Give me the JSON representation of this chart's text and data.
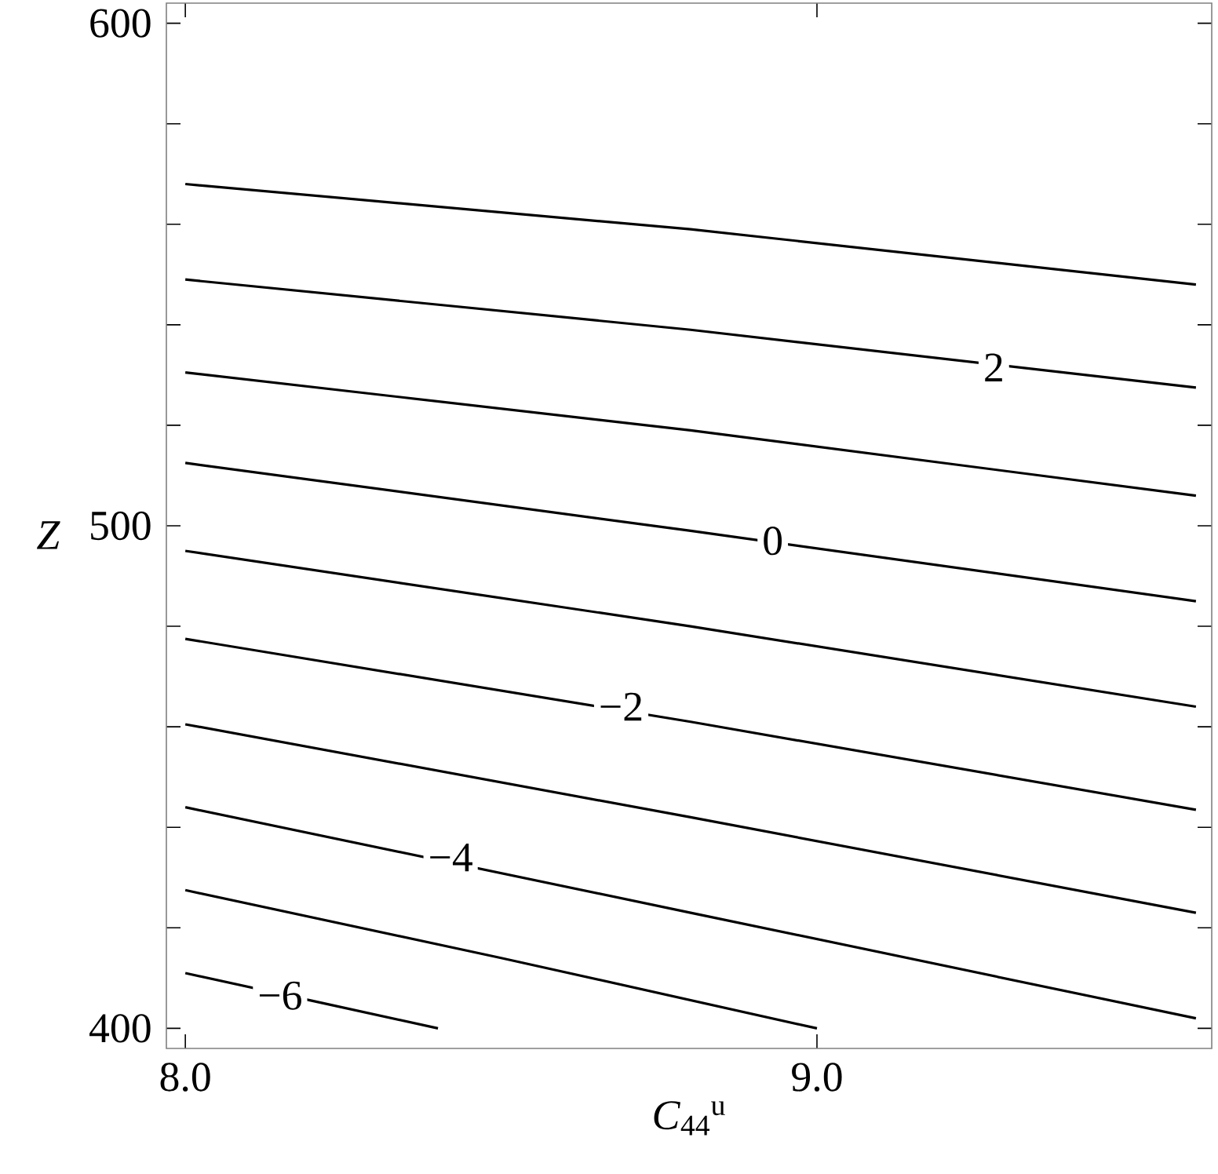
{
  "chart_data": {
    "type": "line",
    "xlabel": "*C*$_{44}$$^{u}$",
    "ylabel": "*Z*",
    "xlim": [
      7.97,
      9.625
    ],
    "ylim": [
      396,
      604
    ],
    "xticks": [
      {
        "value": 8,
        "label": "8.0"
      },
      {
        "value": 9,
        "label": "9.0"
      }
    ],
    "yticks": [
      400,
      {
        "value": 420,
        "label": null
      },
      {
        "value": 440,
        "label": null
      },
      {
        "value": 460,
        "label": null
      },
      {
        "value": 480,
        "label": null
      },
      500,
      {
        "value": 520,
        "label": null
      },
      {
        "value": 540,
        "label": null
      },
      {
        "value": 560,
        "label": null
      },
      {
        "value": 580,
        "label": null
      },
      600
    ],
    "series": [
      {
        "color": "#000000",
        "x": [
          8.0,
          8.8,
          9.6
        ],
        "values": [
          568,
          559,
          548
        ]
      },
      {
        "color": "#000000",
        "x": [
          8.0,
          8.8,
          9.6
        ],
        "values": [
          549,
          539,
          527.5
        ]
      },
      {
        "color": "#000000",
        "x": [
          8.0,
          8.8,
          9.6
        ],
        "values": [
          530.5,
          519,
          506
        ]
      },
      {
        "color": "#000000",
        "x": [
          8.0,
          8.8,
          9.6
        ],
        "values": [
          512.5,
          499,
          485
        ]
      },
      {
        "color": "#000000",
        "x": [
          8.0,
          8.8,
          9.6
        ],
        "values": [
          495,
          480,
          464
        ]
      },
      {
        "color": "#000000",
        "x": [
          8.0,
          8.8,
          9.6
        ],
        "values": [
          477.5,
          461,
          443.5
        ]
      },
      {
        "color": "#000000",
        "x": [
          8.0,
          8.8,
          9.6
        ],
        "values": [
          460.5,
          442,
          423
        ]
      },
      {
        "color": "#000000",
        "x": [
          8.0,
          8.8,
          9.6
        ],
        "values": [
          444,
          423,
          402
        ]
      },
      {
        "color": "#000000",
        "x": [
          8.0,
          8.5,
          9.0
        ],
        "values": [
          427.5,
          414,
          400
        ]
      },
      {
        "color": "#000000",
        "x": [
          8.0,
          8.2,
          8.4
        ],
        "values": [
          411,
          405.5,
          400
        ]
      }
    ],
    "annotations": [
      {
        "text": "2",
        "x": 9.28,
        "y": 531.5
      },
      {
        "text": "0",
        "x": 8.93,
        "y": 497
      },
      {
        "text": "−2",
        "x": 8.69,
        "y": 464
      },
      {
        "text": "−4",
        "x": 8.42,
        "y": 434
      },
      {
        "text": "−6",
        "x": 8.15,
        "y": 406.5
      }
    ]
  }
}
